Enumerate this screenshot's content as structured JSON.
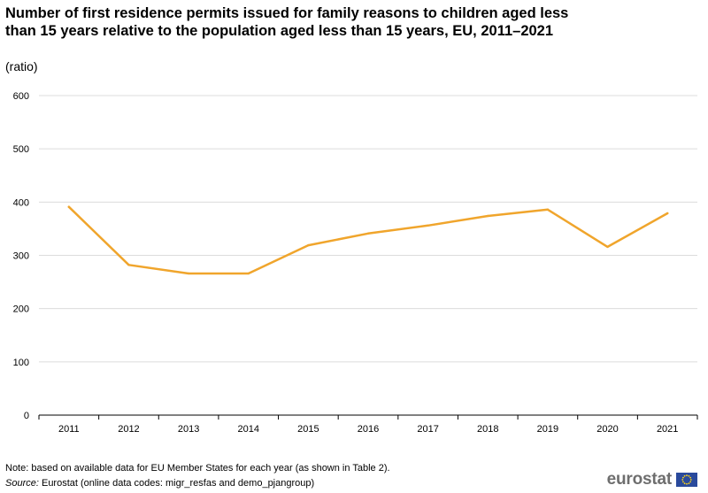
{
  "header": {
    "title": "Number of first residence permits issued for family reasons to children aged less than 15 years relative to the population aged less than 15 years, EU, 2011–2021",
    "subtitle": "(ratio)"
  },
  "footer": {
    "note": "Note: based on available data for EU Member States for each year (as shown in Table 2).",
    "source_label": "Source:",
    "source_text": " Eurostat (online data codes: migr_resfas and demo_pjangroup)",
    "logo_text": "eurostat",
    "logo_icon": "eu-flag-icon"
  },
  "chart_data": {
    "type": "line",
    "categories": [
      "2011",
      "2012",
      "2013",
      "2014",
      "2015",
      "2016",
      "2017",
      "2018",
      "2019",
      "2020",
      "2021"
    ],
    "series": [
      {
        "values": [
          391,
          282,
          266,
          266,
          319,
          341,
          356,
          374,
          386,
          316,
          379
        ],
        "color": "#f0a52c"
      }
    ],
    "yticks": [
      0,
      100,
      200,
      300,
      400,
      500,
      600
    ],
    "ylim": [
      0,
      600
    ],
    "xlabel": "",
    "ylabel": "",
    "grid": true,
    "legend": "none"
  }
}
